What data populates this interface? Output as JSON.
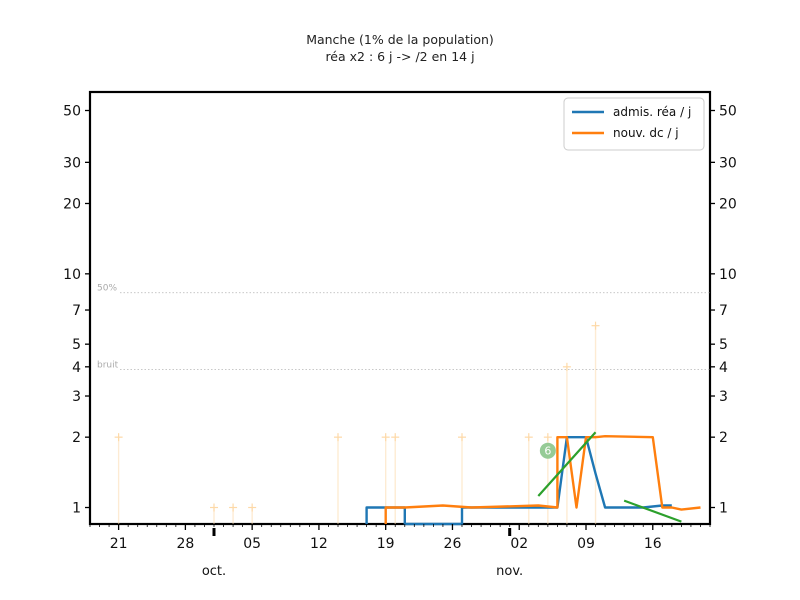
{
  "chart_data": {
    "type": "line",
    "title": "Manche (1% de la population)",
    "subtitle": "réa x2 : 6 j -> /2 en 14 j",
    "xlabel": "",
    "ylabel": "",
    "y_scale": "log",
    "ylim": [
      0.85,
      60
    ],
    "xlim": [
      "2020-09-18",
      "2020-11-22"
    ],
    "grid": false,
    "legend_position": "top-right",
    "y_ticks": [
      1,
      2,
      3,
      4,
      5,
      7,
      10,
      20,
      30,
      50
    ],
    "y_tick_labels": [
      "1",
      "2",
      "3",
      "4",
      "5",
      "7",
      "10",
      "20",
      "30",
      "50"
    ],
    "x_ticks": [
      {
        "date": "2020-09-21",
        "label": "21"
      },
      {
        "date": "2020-09-28",
        "label": "28"
      },
      {
        "date": "2020-10-05",
        "label": "05"
      },
      {
        "date": "2020-10-12",
        "label": "12"
      },
      {
        "date": "2020-10-19",
        "label": "19"
      },
      {
        "date": "2020-10-26",
        "label": "26"
      },
      {
        "date": "2020-11-02",
        "label": "02"
      },
      {
        "date": "2020-11-09",
        "label": "09"
      },
      {
        "date": "2020-11-16",
        "label": "16"
      }
    ],
    "month_labels": [
      {
        "date": "2020-10-01",
        "label": "oct."
      },
      {
        "date": "2020-11-01",
        "label": "nov."
      }
    ],
    "reference_lines": [
      {
        "label": "50%",
        "y": 8.3
      },
      {
        "label": "bruit",
        "y": 3.9
      }
    ],
    "series": [
      {
        "name": "admis. réa / j",
        "color": "#1f77b4",
        "x": [
          "2020-10-17",
          "2020-10-17",
          "2020-10-19",
          "2020-10-21",
          "2020-10-21",
          "2020-10-22",
          "2020-10-27",
          "2020-10-27",
          "2020-10-28",
          "2020-11-05",
          "2020-11-06",
          "2020-11-06",
          "2020-11-07",
          "2020-11-09",
          "2020-11-10",
          "2020-11-11",
          "2020-11-12",
          "2020-11-15",
          "2020-11-17",
          "2020-11-18"
        ],
        "y": [
          0.85,
          1.0,
          1.0,
          1.0,
          0.85,
          0.85,
          0.85,
          1.0,
          1.0,
          1.0,
          1.0,
          1.0,
          2.0,
          2.0,
          1.4,
          1.0,
          1.0,
          1.0,
          1.02,
          1.02
        ]
      },
      {
        "name": "nouv. dc / j",
        "color": "#ff7f0e",
        "x": [
          "2020-10-19",
          "2020-10-19",
          "2020-10-21",
          "2020-10-25",
          "2020-10-28",
          "2020-11-04",
          "2020-11-06",
          "2020-11-06",
          "2020-11-07",
          "2020-11-08",
          "2020-11-09",
          "2020-11-10",
          "2020-11-11",
          "2020-11-16",
          "2020-11-17",
          "2020-11-18",
          "2020-11-19",
          "2020-11-21"
        ],
        "y": [
          0.85,
          1.0,
          1.0,
          1.02,
          1.0,
          1.02,
          1.0,
          2.0,
          2.0,
          1.0,
          2.0,
          2.0,
          2.02,
          2.0,
          1.0,
          1.0,
          0.98,
          1.0
        ]
      }
    ],
    "trend_lines": [
      {
        "color": "#2ca02c",
        "x": [
          "2020-11-04",
          "2020-11-10"
        ],
        "y": [
          1.12,
          2.1
        ]
      },
      {
        "color": "#2ca02c",
        "x": [
          "2020-11-13",
          "2020-11-19"
        ],
        "y": [
          1.07,
          0.87
        ]
      }
    ],
    "trend_badge": {
      "label": "6",
      "color": "#8bc58b",
      "x": "2020-11-05",
      "y": 1.75
    },
    "raw_points": {
      "color": "#fdd9a8",
      "x": [
        "2020-09-21",
        "2020-10-01",
        "2020-10-03",
        "2020-10-05",
        "2020-10-14",
        "2020-10-19",
        "2020-10-20",
        "2020-10-27",
        "2020-11-03",
        "2020-11-05",
        "2020-11-07",
        "2020-11-10"
      ],
      "y": [
        2,
        1,
        1,
        1,
        2,
        2,
        2,
        2,
        2,
        2,
        4,
        6
      ]
    }
  }
}
